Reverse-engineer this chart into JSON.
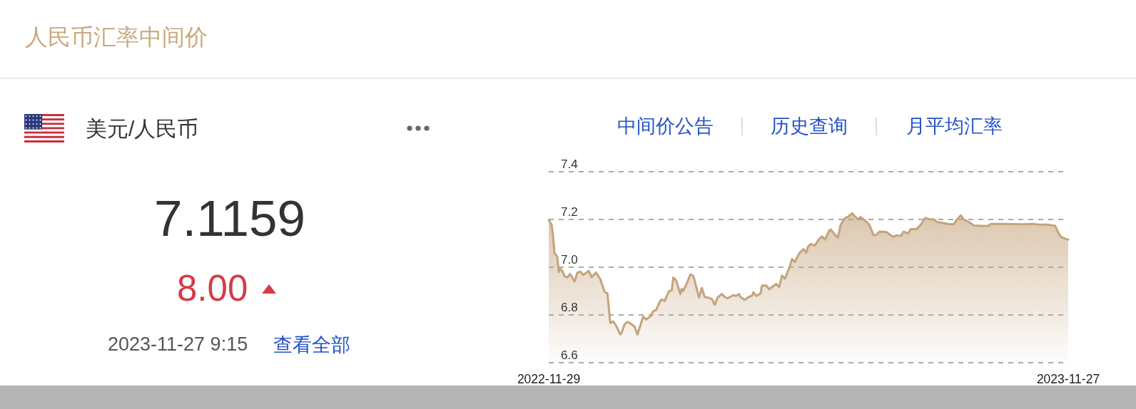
{
  "chart_data": {
    "type": "area",
    "title": "人民币汇率中间价",
    "subtitle": "美元/人民币",
    "annotations": [
      "7.1159",
      "8.00",
      "2023-11-27 9:15",
      "查看全部",
      "中间价公告",
      "历史查询",
      "月平均汇率"
    ],
    "x": [
      "2022-11-29",
      "2022-12-01",
      "2022-12-02",
      "2022-12-03",
      "2022-12-05",
      "2022-12-06",
      "2022-12-07",
      "2022-12-09",
      "2022-12-10",
      "2022-12-12",
      "2022-12-14",
      "2022-12-17",
      "2022-12-19",
      "2022-12-21",
      "2022-12-23",
      "2022-12-27",
      "2022-12-29",
      "2023-01-01",
      "2023-01-04",
      "2023-01-07",
      "2023-01-09",
      "2023-01-11",
      "2023-01-13",
      "2023-01-15",
      "2023-01-18",
      "2023-01-19",
      "2023-01-21",
      "2023-01-23",
      "2023-01-26",
      "2023-01-28",
      "2023-01-30",
      "2023-02-01",
      "2023-02-03",
      "2023-02-05",
      "2023-02-08",
      "2023-02-10",
      "2023-02-12",
      "2023-02-15",
      "2023-02-16",
      "2023-02-18",
      "2023-02-21",
      "2023-02-23",
      "2023-02-24",
      "2023-02-26",
      "2023-03-01",
      "2023-03-02",
      "2023-03-03",
      "2023-03-06",
      "2023-03-08",
      "2023-03-10",
      "2023-03-12",
      "2023-03-14",
      "2023-03-16",
      "2023-03-18",
      "2023-03-20",
      "2023-03-23",
      "2023-03-25",
      "2023-03-27",
      "2023-03-30",
      "2023-04-01",
      "2023-04-03",
      "2023-04-07",
      "2023-04-09",
      "2023-04-11",
      "2023-04-12",
      "2023-04-15",
      "2023-04-18",
      "2023-04-20",
      "2023-04-21",
      "2023-04-23",
      "2023-04-26",
      "2023-04-27",
      "2023-04-30",
      "2023-05-02",
      "2023-05-07",
      "2023-05-09",
      "2023-05-11",
      "2023-05-13",
      "2023-05-16",
      "2023-05-18",
      "2023-05-20",
      "2023-05-23",
      "2023-05-24",
      "2023-05-26",
      "2023-05-28",
      "2023-05-29",
      "2023-05-31",
      "2023-06-03",
      "2023-06-06",
      "2023-06-08",
      "2023-06-10",
      "2023-06-13",
      "2023-06-14",
      "2023-06-16",
      "2023-06-19",
      "2023-06-21",
      "2023-06-24",
      "2023-06-26",
      "2023-06-29",
      "2023-07-03",
      "2023-07-05",
      "2023-07-08",
      "2023-07-11",
      "2023-07-14",
      "2023-07-16",
      "2023-07-18",
      "2023-07-23",
      "2023-07-26",
      "2023-07-28",
      "2023-07-30",
      "2023-08-02",
      "2023-08-04",
      "2023-08-07",
      "2023-08-09",
      "2023-08-13",
      "2023-08-16",
      "2023-08-19",
      "2023-08-22",
      "2023-08-25",
      "2023-08-27",
      "2023-08-31",
      "2023-09-05",
      "2023-09-08",
      "2023-09-10",
      "2023-09-13",
      "2023-09-15",
      "2023-09-19",
      "2023-09-22",
      "2023-09-28",
      "2023-10-02",
      "2023-10-04",
      "2023-10-13",
      "2023-10-26",
      "2023-11-02",
      "2023-11-08",
      "2023-11-13",
      "2023-11-18",
      "2023-11-20",
      "2023-11-22",
      "2023-11-25",
      "2023-11-27"
    ],
    "series": [
      {
        "color": "#c4a47c",
        "values": [
          7.198,
          7.178,
          7.134,
          7.059,
          7.044,
          6.98,
          6.994,
          6.98,
          6.962,
          6.957,
          6.972,
          6.94,
          6.977,
          6.982,
          6.968,
          6.984,
          6.958,
          6.978,
          6.95,
          6.897,
          6.89,
          6.766,
          6.773,
          6.756,
          6.718,
          6.726,
          6.761,
          6.771,
          6.761,
          6.751,
          6.718,
          6.756,
          6.793,
          6.781,
          6.793,
          6.816,
          6.82,
          6.86,
          6.865,
          6.858,
          6.9,
          6.903,
          6.957,
          6.945,
          6.887,
          6.91,
          6.9,
          6.94,
          6.97,
          6.964,
          6.92,
          6.873,
          6.913,
          6.875,
          6.873,
          6.867,
          6.842,
          6.873,
          6.888,
          6.875,
          6.87,
          6.883,
          6.88,
          6.888,
          6.875,
          6.863,
          6.877,
          6.88,
          6.895,
          6.88,
          6.89,
          6.923,
          6.923,
          6.908,
          6.93,
          6.917,
          6.965,
          6.952,
          6.996,
          7.034,
          7.022,
          7.058,
          7.064,
          7.076,
          7.061,
          7.084,
          7.097,
          7.091,
          7.119,
          7.129,
          7.116,
          7.153,
          7.158,
          7.144,
          7.124,
          7.178,
          7.206,
          7.211,
          7.226,
          7.2,
          7.21,
          7.196,
          7.178,
          7.134,
          7.136,
          7.149,
          7.147,
          7.134,
          7.127,
          7.134,
          7.131,
          7.149,
          7.141,
          7.16,
          7.16,
          7.178,
          7.206,
          7.201,
          7.201,
          7.19,
          7.186,
          7.18,
          7.18,
          7.198,
          7.218,
          7.2,
          7.188,
          7.175,
          7.173,
          7.173,
          7.181,
          7.181,
          7.18,
          7.181,
          7.178,
          7.178,
          7.173,
          7.146,
          7.127,
          7.119,
          7.116
        ]
      }
    ],
    "xlim": [
      "2022-11-29",
      "2023-11-27"
    ],
    "xticks": [
      "2022-11-29",
      "2023-11-27"
    ],
    "ylim": [
      6.6,
      7.4
    ],
    "yticks": [
      6.6,
      6.8,
      {
        "value": 7,
        "label": "7.0"
      },
      7.2,
      7.4
    ],
    "grid": "y"
  }
}
